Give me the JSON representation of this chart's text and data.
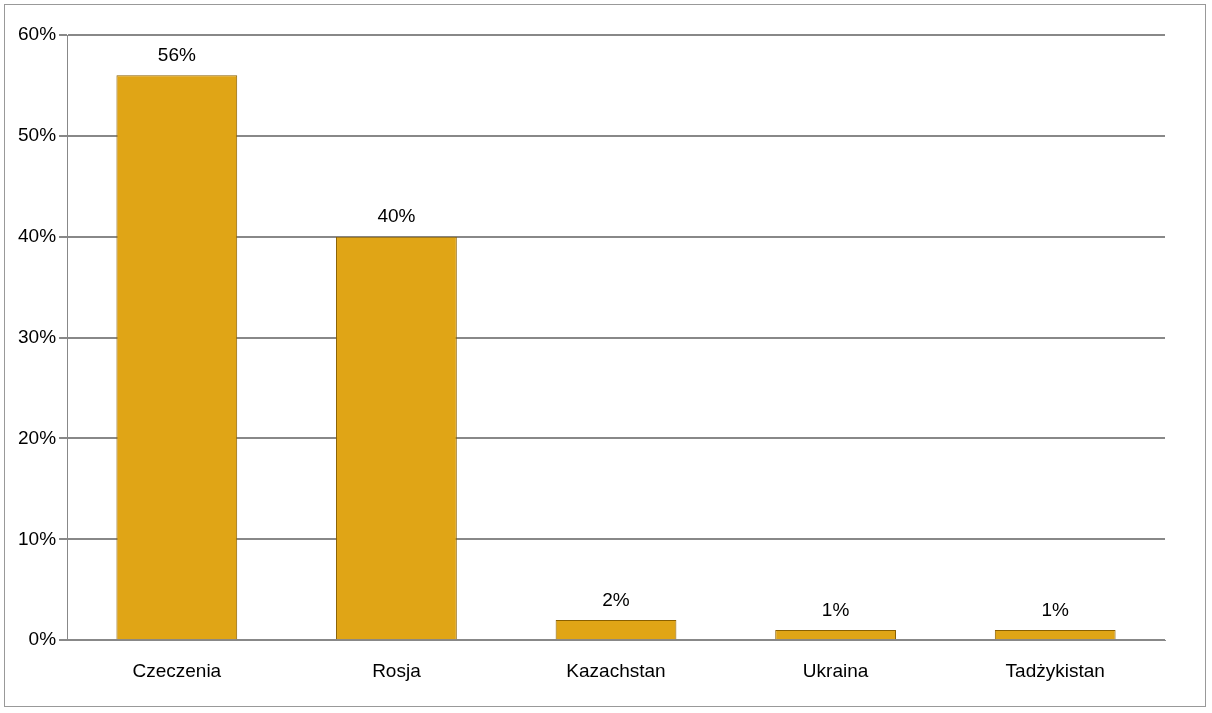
{
  "chart_data": {
    "type": "bar",
    "categories": [
      "Czeczenia",
      "Rosja",
      "Kazachstan",
      "Ukraina",
      "Tadżykistan"
    ],
    "values": [
      56,
      40,
      2,
      1,
      1
    ],
    "value_labels": [
      "56%",
      "40%",
      "2%",
      "1%",
      "1%"
    ],
    "color": "#e0a516",
    "ylim": [
      0,
      60
    ],
    "yticks": [
      {
        "value": 0,
        "label": "0%"
      },
      {
        "value": 10,
        "label": "10%"
      },
      {
        "value": 20,
        "label": "20%"
      },
      {
        "value": 30,
        "label": "30%"
      },
      {
        "value": 40,
        "label": "40%"
      },
      {
        "value": 50,
        "label": "50%"
      },
      {
        "value": 60,
        "label": "60%"
      }
    ],
    "grid": "y",
    "legend": false
  }
}
